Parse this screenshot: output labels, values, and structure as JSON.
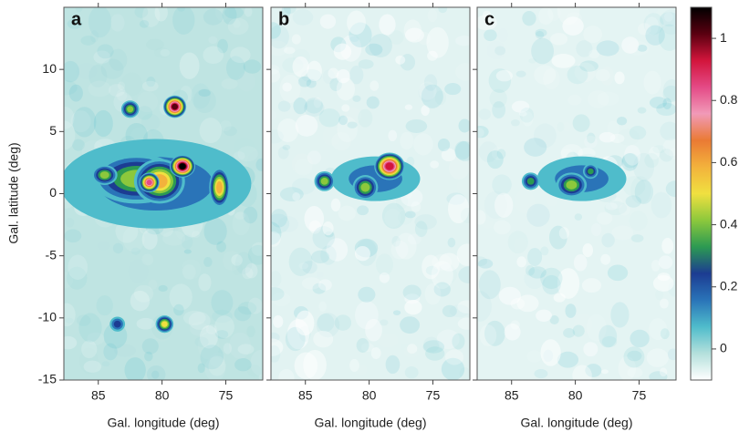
{
  "chart_data": {
    "type": "heatmap",
    "panels": [
      {
        "label": "a"
      },
      {
        "label": "b"
      },
      {
        "label": "c"
      }
    ],
    "xlabel": "Gal. longitude (deg)",
    "ylabel": "Gal. latitude (deg)",
    "xlim": [
      87.7,
      72.1
    ],
    "xticks": [
      85,
      80,
      75
    ],
    "ylim": [
      -15,
      15
    ],
    "yticks": [
      10,
      5,
      0,
      -5,
      -10,
      -15
    ],
    "colorbar": {
      "lim": [
        -0.1,
        1.1
      ],
      "ticks": [
        0,
        0.2,
        0.4,
        0.6,
        0.8,
        1
      ],
      "colormap": [
        "#ffffff",
        "#b4e0dc",
        "#4fbccb",
        "#2a74b8",
        "#1c3c92",
        "#2c9a52",
        "#8cc83c",
        "#f0e040",
        "#f3b23c",
        "#ea7a34",
        "#f19ab8",
        "#e44a86",
        "#d2153c",
        "#5a0010",
        "#000000"
      ]
    }
  }
}
